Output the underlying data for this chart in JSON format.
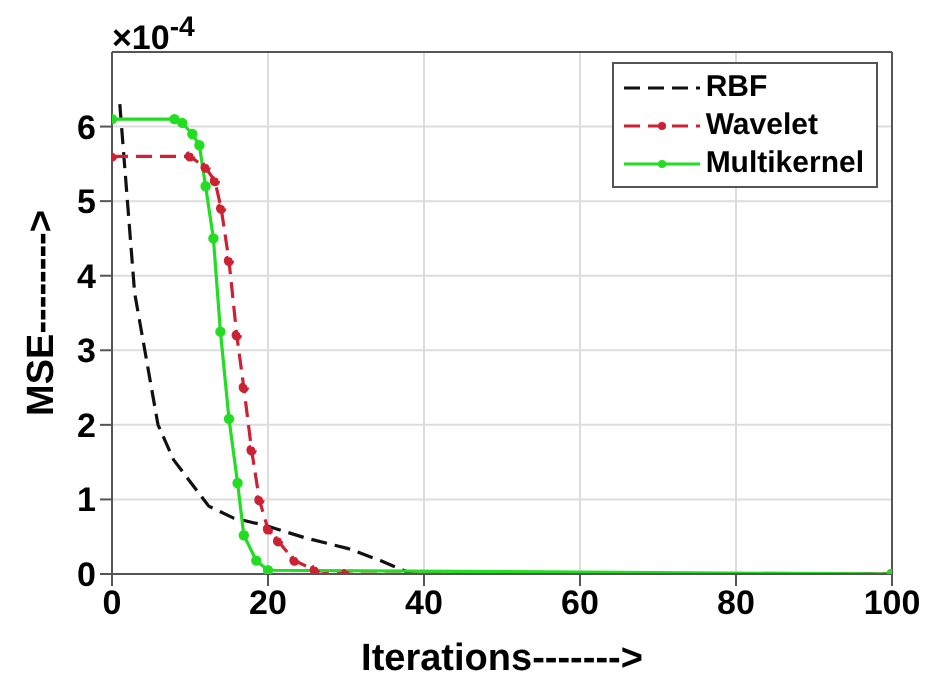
{
  "chart_data": {
    "type": "line",
    "xlabel": "Iterations------->",
    "ylabel": "MSE-------->",
    "annotations": [
      "×10$^{-4}$"
    ],
    "xlim": [
      0,
      100
    ],
    "xticks": [
      0,
      20,
      40,
      60,
      80,
      100
    ],
    "ylim": [
      0,
      7
    ],
    "yticks": [
      0,
      1,
      2,
      3,
      4,
      5,
      6
    ],
    "grid": true,
    "legend": "top right",
    "series": [
      {
        "name": "RBF",
        "color": "#111111",
        "line_style": "dashed",
        "marker": "none",
        "x": [
          1,
          2.9,
          5.9,
          7.9,
          12.4,
          15.6,
          19.7,
          24.6,
          30.3,
          34.4,
          38.5,
          100
        ],
        "values": [
          6.3,
          3.77,
          2.0,
          1.53,
          0.91,
          0.75,
          0.65,
          0.49,
          0.34,
          0.18,
          0,
          0
        ]
      },
      {
        "name": "Wavelet",
        "color": "#cc2233",
        "line_style": "dashed",
        "marker": "circle",
        "x": [
          0,
          10,
          12,
          13.2,
          14,
          15,
          16,
          16.9,
          17.9,
          18.9,
          20,
          21.3,
          23.4,
          26,
          30,
          100
        ],
        "values": [
          5.6,
          5.6,
          5.45,
          5.27,
          4.9,
          4.2,
          3.2,
          2.5,
          1.66,
          0.99,
          0.6,
          0.44,
          0.18,
          0.05,
          0,
          0
        ]
      },
      {
        "name": "Multikernel",
        "color": "#22dd22",
        "line_style": "solid",
        "marker": "circle",
        "x": [
          0,
          8,
          9,
          10.3,
          11.2,
          12,
          13,
          13.9,
          15,
          16.1,
          16.9,
          18.5,
          20,
          100
        ],
        "values": [
          6.1,
          6.1,
          6.05,
          5.9,
          5.75,
          5.2,
          4.5,
          3.25,
          2.08,
          1.22,
          0.52,
          0.18,
          0.05,
          0
        ]
      }
    ]
  }
}
